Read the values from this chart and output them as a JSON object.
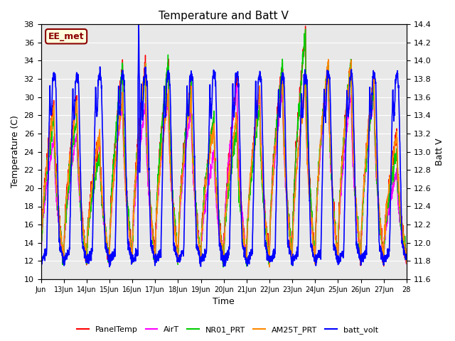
{
  "title": "Temperature and Batt V",
  "xlabel": "Time",
  "ylabel_left": "Temperature (C)",
  "ylabel_right": "Batt V",
  "ylim_left": [
    10,
    38
  ],
  "ylim_right": [
    11.6,
    14.4
  ],
  "xtick_labels": [
    "Jun",
    "13Jun",
    "14Jun",
    "15Jun",
    "16Jun",
    "17Jun",
    "18Jun",
    "19Jun",
    "20Jun",
    "21Jun",
    "22Jun",
    "23Jun",
    "24Jun",
    "25Jun",
    "26Jun",
    "27Jun",
    "28"
  ],
  "background_color": "#ffffff",
  "plot_bg_color": "#e8e8e8",
  "annotation_text": "EE_met",
  "annotation_color": "#8b0000",
  "annotation_bg": "#ffffdd",
  "series": [
    {
      "name": "PanelTemp",
      "color": "#ff0000",
      "lw": 1.0
    },
    {
      "name": "AirT",
      "color": "#ff00ff",
      "lw": 1.0
    },
    {
      "name": "NR01_PRT",
      "color": "#00cc00",
      "lw": 1.0
    },
    {
      "name": "AM25T_PRT",
      "color": "#ff8800",
      "lw": 1.0
    },
    {
      "name": "batt_volt",
      "color": "#0000ff",
      "lw": 1.2
    }
  ],
  "n_days": 16,
  "pts_per_day": 144
}
